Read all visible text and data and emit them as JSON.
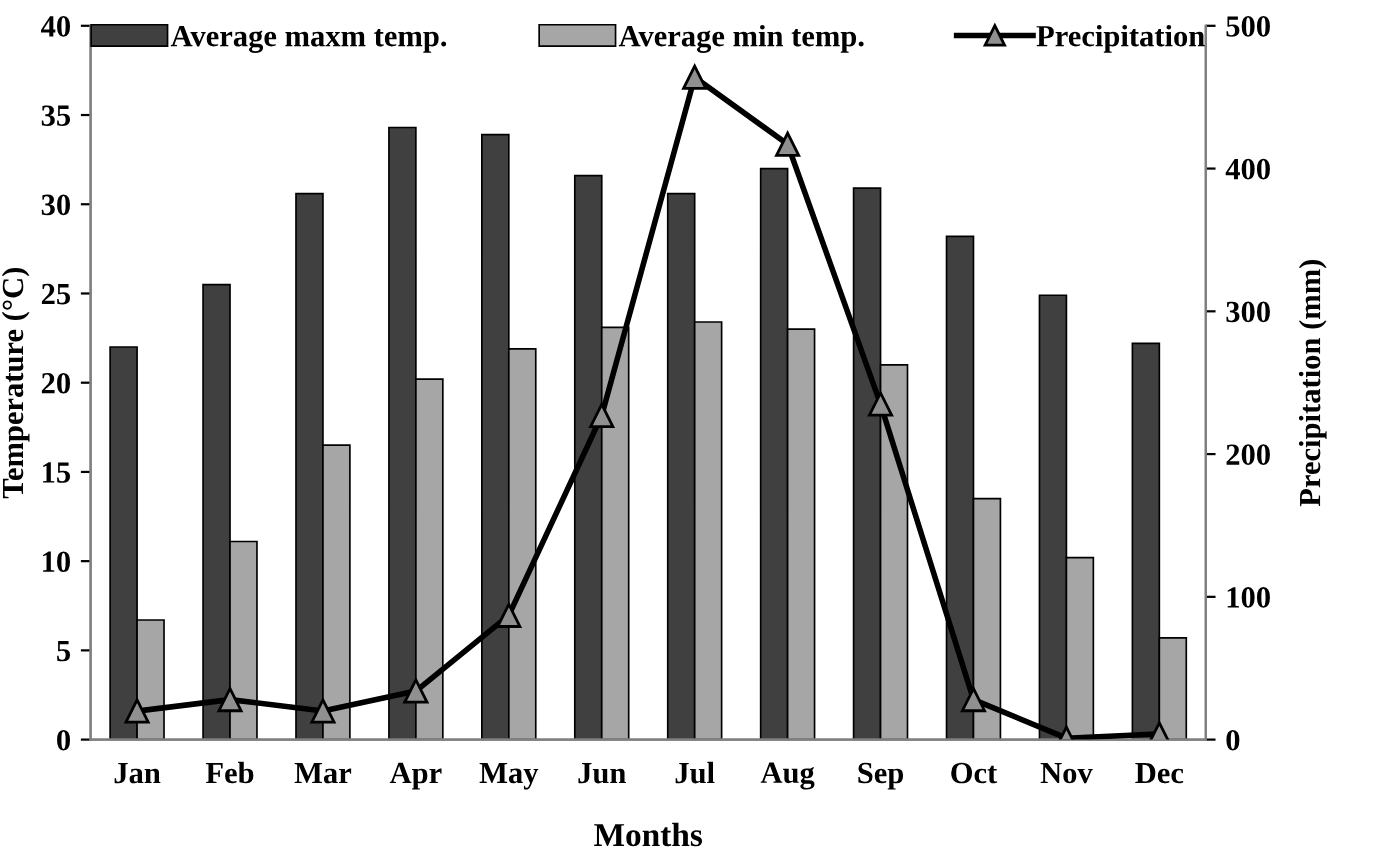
{
  "chart_data": {
    "type": "bar",
    "xlabel": "Months",
    "ylabel": "Temperature (°C)",
    "y2label": "Precipitation (mm)",
    "categories": [
      "Jan",
      "Feb",
      "Mar",
      "Apr",
      "May",
      "Jun",
      "Jul",
      "Aug",
      "Sep",
      "Oct",
      "Nov",
      "Dec"
    ],
    "series": [
      {
        "name": "Average maxm temp.",
        "color": "#404040",
        "values": [
          22.0,
          25.5,
          30.6,
          34.3,
          33.9,
          31.6,
          30.6,
          32.0,
          30.9,
          28.2,
          24.9,
          22.2
        ]
      },
      {
        "name": "Average min temp.",
        "color": "#a6a6a6",
        "values": [
          6.7,
          11.1,
          16.5,
          20.2,
          21.9,
          23.1,
          23.4,
          23.0,
          21.0,
          13.5,
          10.2,
          5.7
        ]
      },
      {
        "name": "Precipitation",
        "type": "line",
        "axis": "y2",
        "color": "#000000",
        "marker": "triangle",
        "values": [
          20,
          28,
          20,
          34,
          87,
          227,
          464,
          417,
          235,
          28,
          1,
          4
        ]
      }
    ],
    "ylim": [
      0,
      40
    ],
    "yticks": [
      0,
      5,
      10,
      15,
      20,
      25,
      30,
      35,
      40
    ],
    "y2lim": [
      0,
      500
    ],
    "y2ticks": [
      0,
      100,
      200,
      300,
      400,
      500
    ],
    "legend": "top",
    "grid": false
  }
}
